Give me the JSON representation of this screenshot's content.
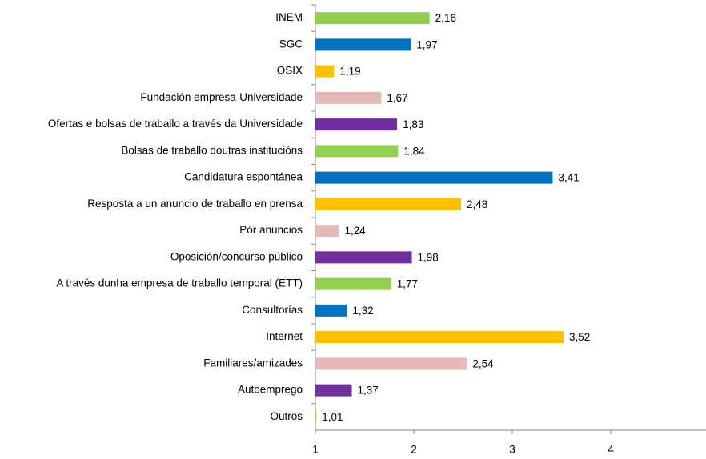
{
  "chart_data": {
    "type": "barh",
    "categories": [
      "INEM",
      "SGC",
      "OSIX",
      "Fundación empresa-Universidade",
      "Ofertas e bolsas de traballo a través da Universidade",
      "Bolsas de traballo doutras institucións",
      "Candidatura espontánea",
      "Resposta a un anuncio de traballo en prensa",
      "Pór anuncios",
      "Oposición/concurso público",
      "A través dunha empresa de traballo temporal (ETT)",
      "Consultorías",
      "Internet",
      "Familiares/amizades",
      "Autoemprego",
      "Outros"
    ],
    "values": [
      2.16,
      1.97,
      1.19,
      1.67,
      1.83,
      1.84,
      3.41,
      2.48,
      1.24,
      1.98,
      1.77,
      1.32,
      3.52,
      2.54,
      1.37,
      1.01
    ],
    "value_labels": [
      "2,16",
      "1,97",
      "1,19",
      "1,67",
      "1,83",
      "1,84",
      "3,41",
      "2,48",
      "1,24",
      "1,98",
      "1,77",
      "1,32",
      "3,52",
      "2,54",
      "1,37",
      "1,01"
    ],
    "colors": [
      "#92d050",
      "#0070c0",
      "#ffc000",
      "#e6b9b8",
      "#7030a0",
      "#92d050",
      "#0070c0",
      "#ffc000",
      "#e6b9b8",
      "#7030a0",
      "#92d050",
      "#0070c0",
      "#ffc000",
      "#e6b9b8",
      "#7030a0",
      "#92d050"
    ],
    "xlim": [
      1,
      5
    ],
    "xticks": [
      1,
      2,
      3,
      4,
      5
    ]
  }
}
